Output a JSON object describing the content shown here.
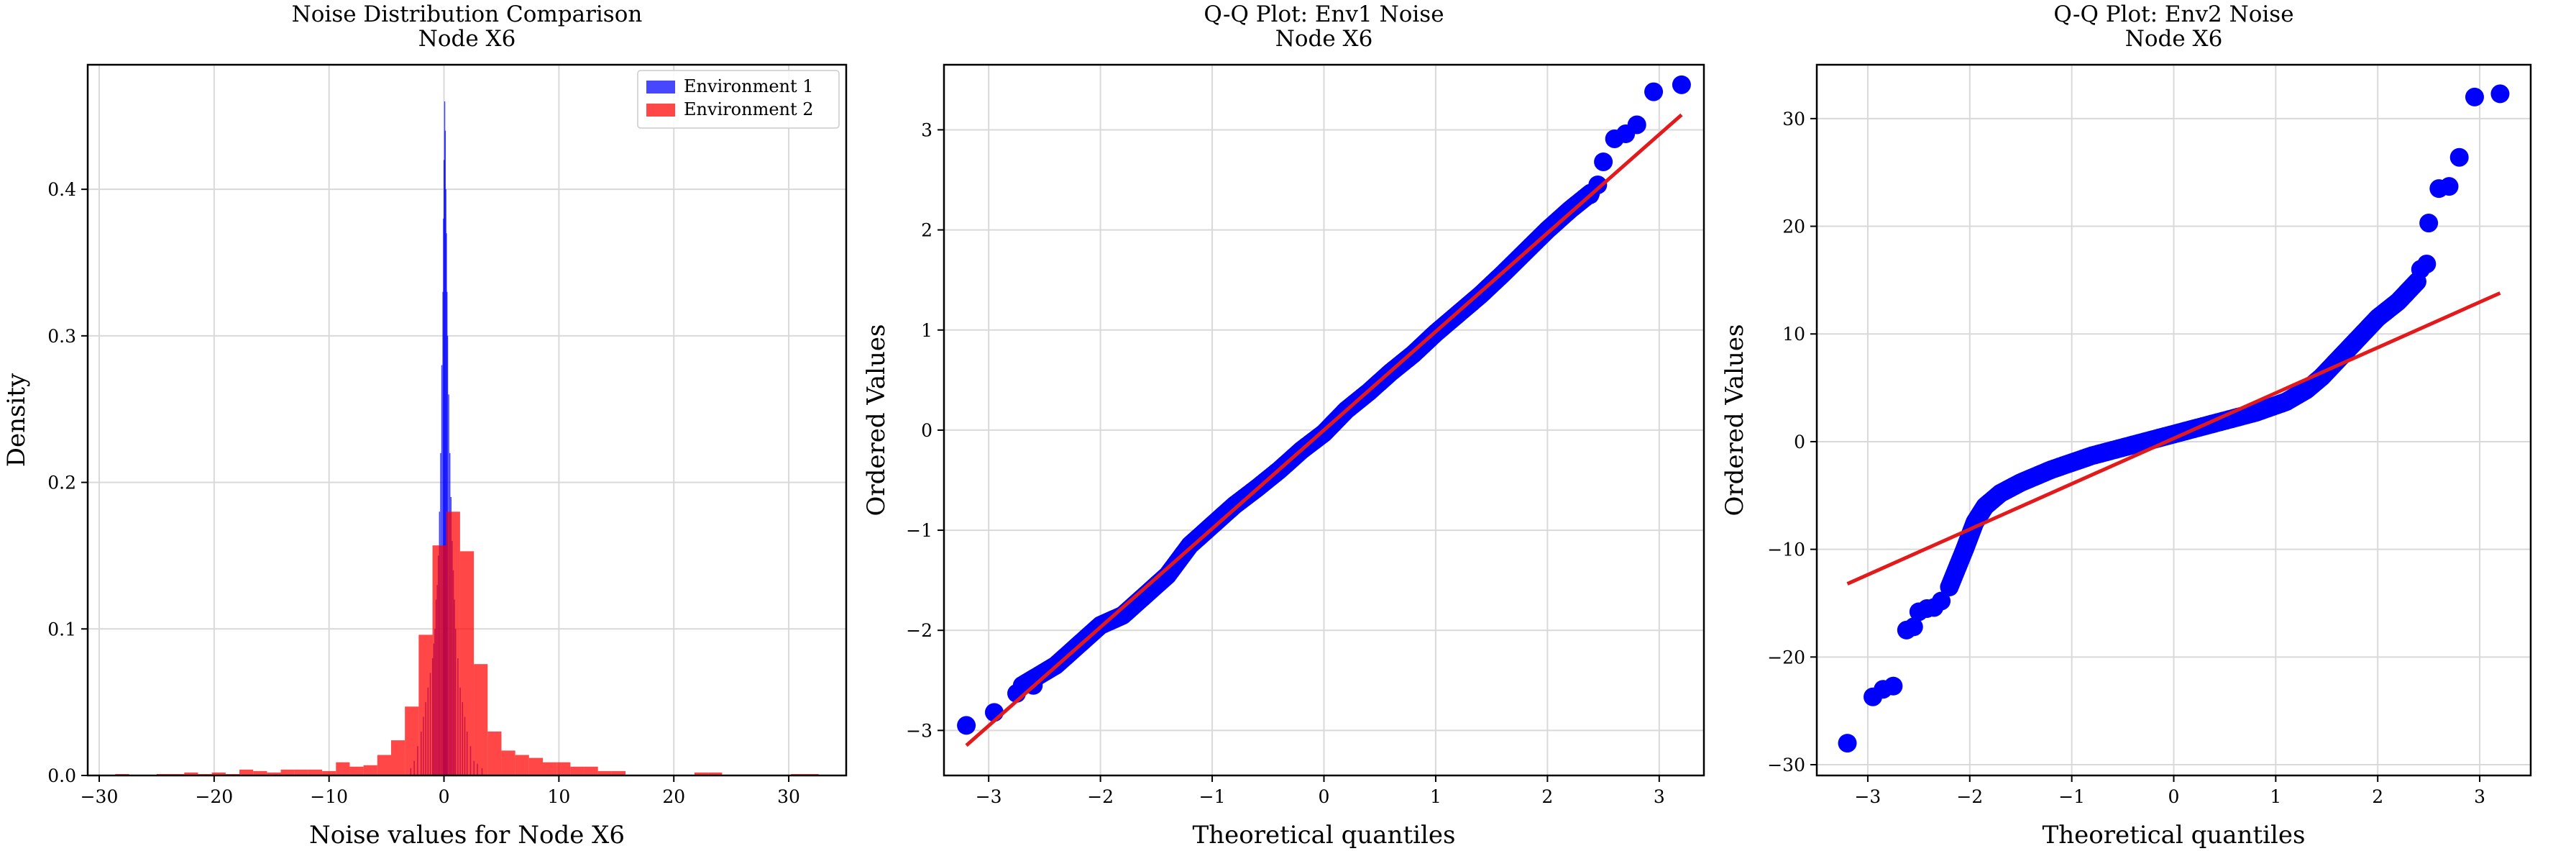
{
  "colors": {
    "env1": "#0000ff",
    "env2": "#ff0000",
    "overlap": "#c00040",
    "fit_line": "#e31a1c",
    "points": "#0000ff",
    "grid": "#d9d9d9"
  },
  "chart_data": [
    {
      "type": "bar",
      "kind": "histogram",
      "title": "Noise Distribution Comparison",
      "subtitle": "Node X6",
      "xlabel": "Noise values for Node X6",
      "ylabel": "Density",
      "xlim": [
        -31,
        35
      ],
      "ylim": [
        0,
        0.485
      ],
      "xticks": [
        -30,
        -20,
        -10,
        0,
        10,
        20,
        30
      ],
      "yticks": [
        0.0,
        0.1,
        0.2,
        0.3,
        0.4
      ],
      "xtick_labels": [
        "−30",
        "−20",
        "−10",
        "0",
        "10",
        "20",
        "30"
      ],
      "ytick_labels": [
        "0.0",
        "0.1",
        "0.2",
        "0.3",
        "0.4"
      ],
      "grid": true,
      "legend": {
        "placement": "top-right",
        "entries": [
          "Environment 1",
          "Environment 2"
        ]
      },
      "series": [
        {
          "name": "Environment 1",
          "bin_width": 0.07,
          "bins": [
            [
              -2.9,
              0.005
            ],
            [
              -2.6,
              0.01
            ],
            [
              -2.3,
              0.02
            ],
            [
              -2.0,
              0.03
            ],
            [
              -1.8,
              0.04
            ],
            [
              -1.6,
              0.05
            ],
            [
              -1.4,
              0.06
            ],
            [
              -1.2,
              0.07
            ],
            [
              -1.0,
              0.08
            ],
            [
              -0.9,
              0.09
            ],
            [
              -0.8,
              0.1
            ],
            [
              -0.7,
              0.12
            ],
            [
              -0.6,
              0.13
            ],
            [
              -0.5,
              0.15
            ],
            [
              -0.4,
              0.18
            ],
            [
              -0.3,
              0.22
            ],
            [
              -0.2,
              0.28
            ],
            [
              -0.1,
              0.33
            ],
            [
              -0.05,
              0.38
            ],
            [
              0.0,
              0.42
            ],
            [
              0.05,
              0.46
            ],
            [
              0.1,
              0.44
            ],
            [
              0.15,
              0.4
            ],
            [
              0.2,
              0.37
            ],
            [
              0.25,
              0.33
            ],
            [
              0.3,
              0.3
            ],
            [
              0.4,
              0.26
            ],
            [
              0.5,
              0.22
            ],
            [
              0.6,
              0.19
            ],
            [
              0.7,
              0.16
            ],
            [
              0.8,
              0.14
            ],
            [
              0.9,
              0.12
            ],
            [
              1.0,
              0.1
            ],
            [
              1.2,
              0.08
            ],
            [
              1.4,
              0.06
            ],
            [
              1.6,
              0.05
            ],
            [
              1.8,
              0.04
            ],
            [
              2.0,
              0.03
            ],
            [
              2.3,
              0.02
            ],
            [
              2.6,
              0.01
            ],
            [
              2.9,
              0.008
            ],
            [
              3.3,
              0.005
            ]
          ]
        },
        {
          "name": "Environment 2",
          "bin_width": 1.2,
          "bins": [
            [
              -28.0,
              0.001
            ],
            [
              -26.8,
              0.0
            ],
            [
              -25.6,
              0.0
            ],
            [
              -24.4,
              0.001
            ],
            [
              -23.2,
              0.001
            ],
            [
              -22.0,
              0.002
            ],
            [
              -20.8,
              0.001
            ],
            [
              -19.6,
              0.002
            ],
            [
              -18.4,
              0.001
            ],
            [
              -17.2,
              0.004
            ],
            [
              -16.0,
              0.003
            ],
            [
              -14.8,
              0.002
            ],
            [
              -13.6,
              0.004
            ],
            [
              -12.4,
              0.004
            ],
            [
              -11.2,
              0.004
            ],
            [
              -10.0,
              0.003
            ],
            [
              -8.8,
              0.009
            ],
            [
              -7.6,
              0.006
            ],
            [
              -6.4,
              0.007
            ],
            [
              -5.2,
              0.014
            ],
            [
              -4.0,
              0.024
            ],
            [
              -2.8,
              0.047
            ],
            [
              -1.6,
              0.096
            ],
            [
              -0.4,
              0.157
            ],
            [
              0.8,
              0.18
            ],
            [
              2.0,
              0.153
            ],
            [
              3.2,
              0.076
            ],
            [
              4.4,
              0.03
            ],
            [
              5.6,
              0.017
            ],
            [
              6.8,
              0.014
            ],
            [
              8.0,
              0.012
            ],
            [
              9.2,
              0.009
            ],
            [
              10.4,
              0.009
            ],
            [
              11.6,
              0.006
            ],
            [
              12.8,
              0.006
            ],
            [
              14.0,
              0.003
            ],
            [
              15.2,
              0.003
            ],
            [
              16.4,
              0.0
            ],
            [
              17.6,
              0.0
            ],
            [
              18.8,
              0.0
            ],
            [
              20.0,
              0.0
            ],
            [
              21.2,
              0.0
            ],
            [
              22.4,
              0.002
            ],
            [
              23.6,
              0.002
            ],
            [
              24.8,
              0.0
            ],
            [
              26.0,
              0.0
            ],
            [
              27.2,
              0.0
            ],
            [
              28.4,
              0.0
            ],
            [
              29.6,
              0.0
            ],
            [
              30.8,
              0.001
            ],
            [
              32.0,
              0.001
            ]
          ]
        }
      ]
    },
    {
      "type": "scatter",
      "kind": "qq-plot",
      "title": "Q-Q Plot: Env1 Noise",
      "subtitle": "Node X6",
      "xlabel": "Theoretical quantiles",
      "ylabel": "Ordered Values",
      "xlim": [
        -3.4,
        3.4
      ],
      "ylim": [
        -3.45,
        3.65
      ],
      "xticks": [
        -3,
        -2,
        -1,
        0,
        1,
        2,
        3
      ],
      "yticks": [
        -3,
        -2,
        -1,
        0,
        1,
        2,
        3
      ],
      "xtick_labels": [
        "−3",
        "−2",
        "−1",
        "0",
        "1",
        "2",
        "3"
      ],
      "ytick_labels": [
        "−3",
        "−2",
        "−1",
        "0",
        "1",
        "2",
        "3"
      ],
      "grid": true,
      "fit_line": {
        "x": [
          -3.2,
          3.2
        ],
        "y": [
          -3.15,
          3.15
        ]
      },
      "curve": {
        "x": [
          -2.7,
          -2.4,
          -2.2,
          -2.0,
          -1.8,
          -1.6,
          -1.4,
          -1.2,
          -1.0,
          -0.8,
          -0.6,
          -0.4,
          -0.2,
          0.0,
          0.2,
          0.4,
          0.6,
          0.8,
          1.0,
          1.2,
          1.4,
          1.6,
          1.8,
          2.0,
          2.2,
          2.4
        ],
        "y": [
          -2.55,
          -2.35,
          -2.15,
          -1.95,
          -1.85,
          -1.65,
          -1.45,
          -1.15,
          -0.95,
          -0.75,
          -0.58,
          -0.4,
          -0.2,
          -0.03,
          0.2,
          0.38,
          0.58,
          0.76,
          0.97,
          1.16,
          1.35,
          1.56,
          1.78,
          2.0,
          2.2,
          2.38
        ]
      },
      "outliers": {
        "x": [
          -3.2,
          -2.95,
          -2.75,
          -2.6,
          2.38,
          2.45,
          2.5,
          2.6,
          2.7,
          2.8,
          2.95,
          3.2
        ],
        "y": [
          -2.95,
          -2.82,
          -2.63,
          -2.55,
          2.35,
          2.45,
          2.68,
          2.91,
          2.96,
          3.05,
          3.38,
          3.45
        ]
      }
    },
    {
      "type": "scatter",
      "kind": "qq-plot",
      "title": "Q-Q Plot: Env2 Noise",
      "subtitle": "Node X6",
      "xlabel": "Theoretical quantiles",
      "ylabel": "Ordered Values",
      "xlim": [
        -3.5,
        3.5
      ],
      "ylim": [
        -31,
        35
      ],
      "xticks": [
        -3,
        -2,
        -1,
        0,
        1,
        2,
        3
      ],
      "yticks": [
        -30,
        -20,
        -10,
        0,
        10,
        20,
        30
      ],
      "xtick_labels": [
        "−3",
        "−2",
        "−1",
        "0",
        "1",
        "2",
        "3"
      ],
      "ytick_labels": [
        "−30",
        "−20",
        "−10",
        "0",
        "10",
        "20",
        "30"
      ],
      "grid": true,
      "fit_line": {
        "x": [
          -3.2,
          3.2
        ],
        "y": [
          -13.2,
          13.8
        ]
      },
      "curve": {
        "x": [
          -2.2,
          -2.05,
          -1.95,
          -1.85,
          -1.7,
          -1.5,
          -1.2,
          -0.8,
          -0.4,
          0.0,
          0.4,
          0.8,
          1.1,
          1.3,
          1.45,
          1.55,
          1.65,
          1.8,
          2.0,
          2.2,
          2.4
        ],
        "y": [
          -13.5,
          -10.0,
          -7.5,
          -6.0,
          -4.8,
          -3.8,
          -2.6,
          -1.3,
          -0.3,
          0.7,
          1.7,
          2.7,
          3.7,
          4.8,
          6.0,
          7.0,
          8.0,
          9.5,
          11.5,
          13.0,
          15.0
        ]
      },
      "outliers": {
        "x": [
          -3.2,
          -2.95,
          -2.85,
          -2.75,
          -2.62,
          -2.55,
          -2.5,
          -2.42,
          -2.35,
          -2.28,
          2.42,
          2.48,
          2.5,
          2.6,
          2.7,
          2.8,
          2.95,
          3.2
        ],
        "y": [
          -28.0,
          -23.7,
          -23.0,
          -22.7,
          -17.5,
          -17.2,
          -15.8,
          -15.5,
          -15.4,
          -14.8,
          16.0,
          16.5,
          20.3,
          23.5,
          23.7,
          26.4,
          32.0,
          32.3
        ]
      }
    }
  ]
}
